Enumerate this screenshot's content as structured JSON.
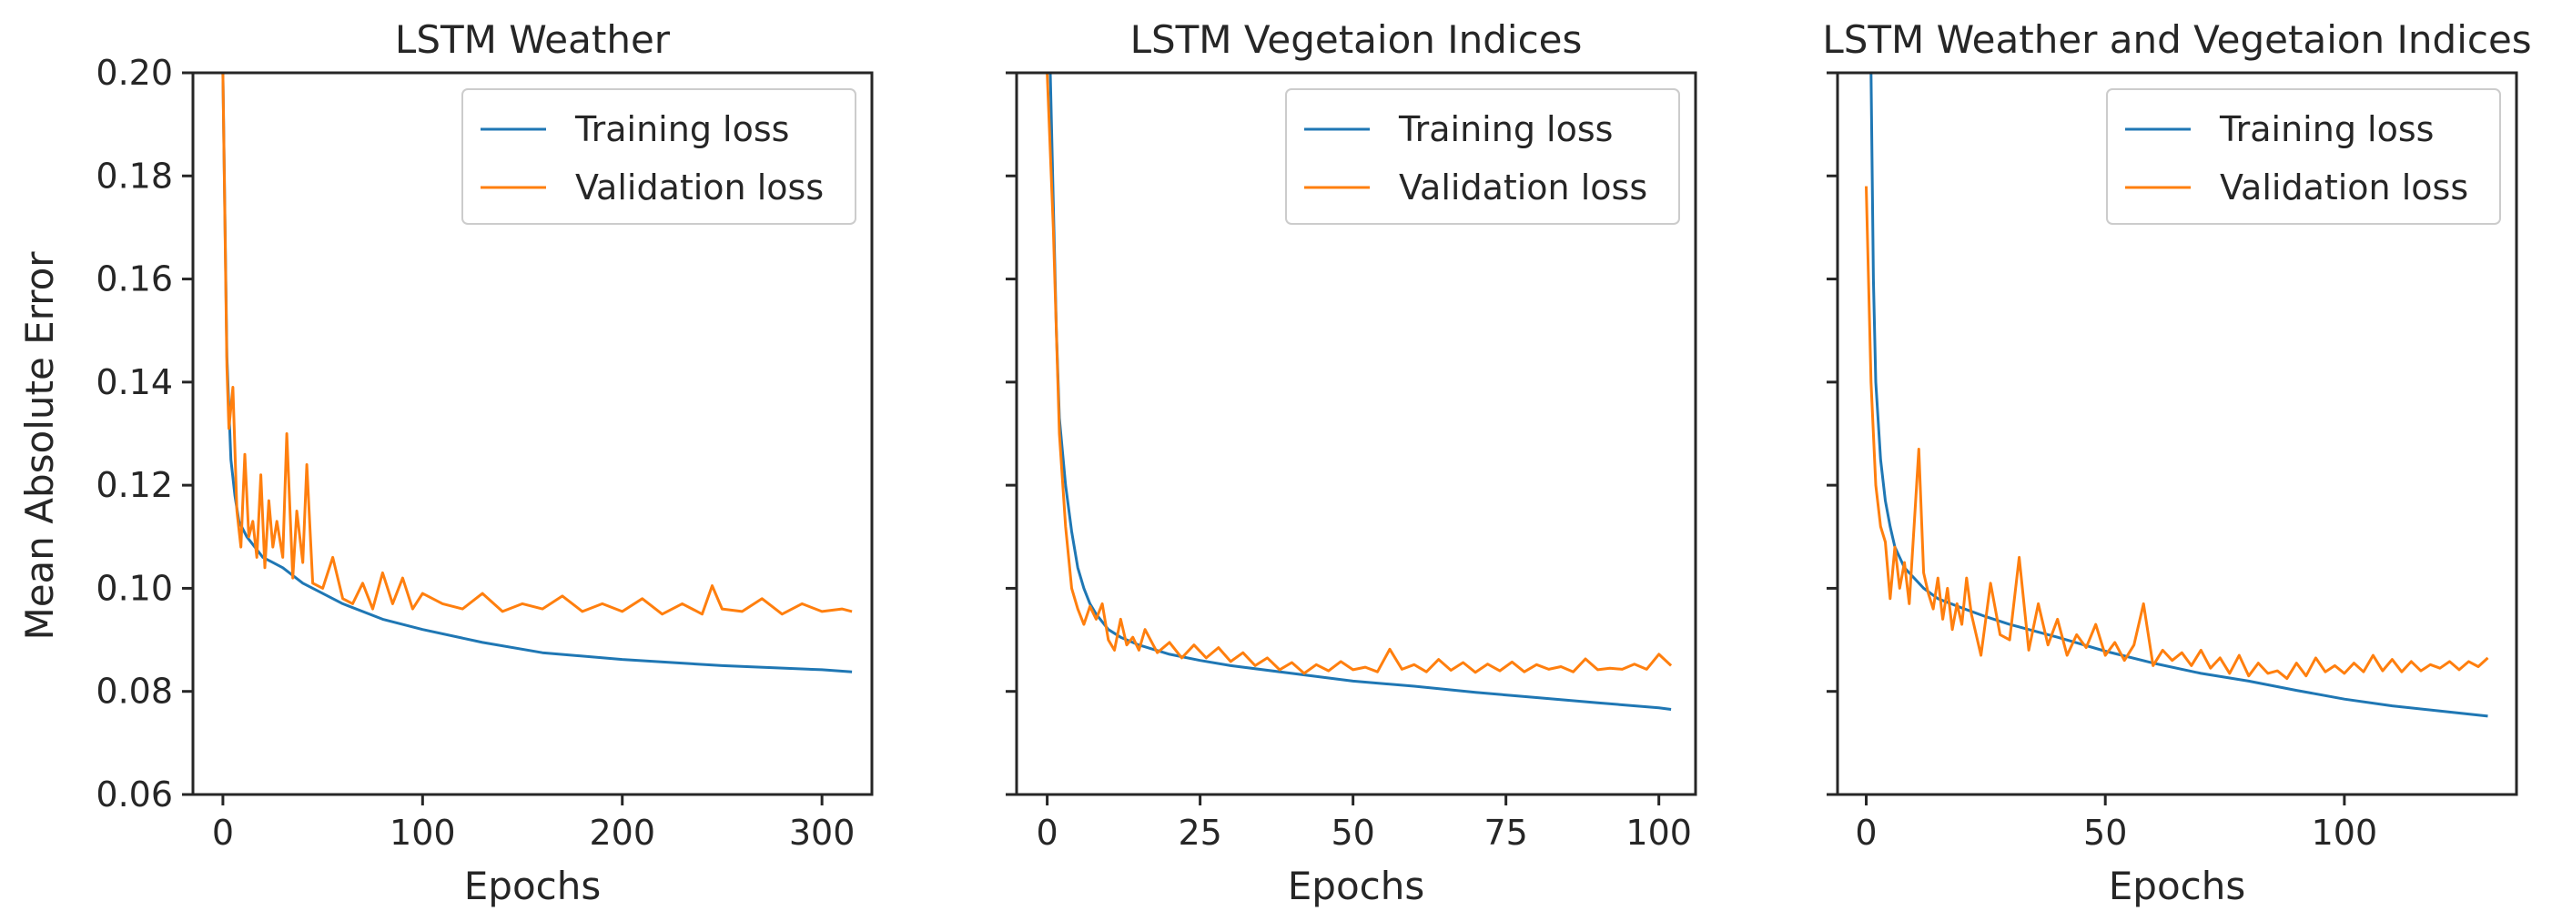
{
  "colors": {
    "training": "#1f77b4",
    "validation": "#ff7f0e"
  },
  "shared_ylabel": "Mean Absolute Error",
  "chart_data": [
    {
      "type": "line",
      "title": "LSTM Weather",
      "xlabel": "Epochs",
      "ylabel": "Mean Absolute Error",
      "xlim": [
        -15,
        325
      ],
      "ylim": [
        0.06,
        0.2
      ],
      "xticks": [
        0,
        100,
        200,
        300
      ],
      "yticks": [
        0.06,
        0.08,
        0.1,
        0.12,
        0.14,
        0.16,
        0.18,
        0.2
      ],
      "ytick_labels": [
        "0.06",
        "0.08",
        "0.10",
        "0.12",
        "0.14",
        "0.16",
        "0.18",
        "0.20"
      ],
      "legend": "top-right",
      "series": [
        {
          "name": "Training loss",
          "x": [
            0,
            2,
            4,
            6,
            8,
            12,
            16,
            20,
            25,
            30,
            40,
            50,
            60,
            80,
            100,
            130,
            160,
            200,
            250,
            300,
            315
          ],
          "values": [
            0.2,
            0.145,
            0.125,
            0.118,
            0.113,
            0.11,
            0.108,
            0.106,
            0.105,
            0.104,
            0.101,
            0.099,
            0.097,
            0.094,
            0.092,
            0.0895,
            0.0875,
            0.0862,
            0.085,
            0.0842,
            0.0838
          ]
        },
        {
          "name": "Validation loss",
          "x": [
            0,
            2,
            3,
            5,
            7,
            9,
            11,
            13,
            15,
            17,
            19,
            21,
            23,
            25,
            27,
            30,
            32,
            35,
            37,
            40,
            42,
            45,
            50,
            55,
            60,
            65,
            70,
            75,
            80,
            85,
            90,
            95,
            100,
            110,
            120,
            130,
            140,
            150,
            160,
            170,
            180,
            190,
            200,
            210,
            220,
            230,
            240,
            245,
            250,
            260,
            270,
            280,
            290,
            300,
            310,
            315
          ],
          "values": [
            0.2,
            0.143,
            0.131,
            0.139,
            0.115,
            0.108,
            0.126,
            0.11,
            0.113,
            0.106,
            0.122,
            0.104,
            0.117,
            0.108,
            0.113,
            0.106,
            0.13,
            0.102,
            0.115,
            0.105,
            0.124,
            0.101,
            0.1,
            0.106,
            0.098,
            0.097,
            0.101,
            0.096,
            0.103,
            0.097,
            0.102,
            0.096,
            0.099,
            0.097,
            0.096,
            0.099,
            0.0955,
            0.097,
            0.096,
            0.0985,
            0.0955,
            0.097,
            0.0955,
            0.098,
            0.095,
            0.097,
            0.095,
            0.1005,
            0.096,
            0.0955,
            0.098,
            0.095,
            0.097,
            0.0955,
            0.096,
            0.0955
          ]
        }
      ]
    },
    {
      "type": "line",
      "title": "LSTM Vegetaion Indices",
      "xlabel": "Epochs",
      "ylabel": "",
      "xlim": [
        -5,
        106
      ],
      "ylim": [
        0.06,
        0.2
      ],
      "xticks": [
        0,
        25,
        50,
        75,
        100
      ],
      "yticks": [
        0.06,
        0.08,
        0.1,
        0.12,
        0.14,
        0.16,
        0.18,
        0.2
      ],
      "ytick_labels": [],
      "legend": "top-right",
      "series": [
        {
          "name": "Training loss",
          "x": [
            0.5,
            1,
            1.5,
            2,
            3,
            4,
            5,
            6,
            7,
            8,
            10,
            12,
            15,
            20,
            25,
            30,
            40,
            50,
            60,
            70,
            80,
            90,
            100,
            102
          ],
          "values": [
            0.2,
            0.175,
            0.15,
            0.133,
            0.12,
            0.111,
            0.104,
            0.1,
            0.097,
            0.095,
            0.092,
            0.0905,
            0.089,
            0.0872,
            0.086,
            0.085,
            0.0835,
            0.082,
            0.081,
            0.0798,
            0.0788,
            0.0778,
            0.0768,
            0.0765
          ]
        },
        {
          "name": "Validation loss",
          "x": [
            0,
            1,
            2,
            3,
            4,
            5,
            6,
            7,
            8,
            9,
            10,
            11,
            12,
            13,
            14,
            15,
            16,
            18,
            20,
            22,
            24,
            26,
            28,
            30,
            32,
            34,
            36,
            38,
            40,
            42,
            44,
            46,
            48,
            50,
            52,
            54,
            56,
            58,
            60,
            62,
            64,
            66,
            68,
            70,
            72,
            74,
            76,
            78,
            80,
            82,
            84,
            86,
            88,
            90,
            92,
            94,
            96,
            98,
            100,
            102
          ],
          "values": [
            0.2,
            0.17,
            0.13,
            0.112,
            0.1,
            0.096,
            0.093,
            0.0965,
            0.094,
            0.097,
            0.09,
            0.088,
            0.094,
            0.089,
            0.0905,
            0.088,
            0.092,
            0.0875,
            0.0895,
            0.0865,
            0.089,
            0.0865,
            0.0885,
            0.0858,
            0.0875,
            0.085,
            0.0865,
            0.0842,
            0.0856,
            0.0835,
            0.0852,
            0.084,
            0.0858,
            0.0842,
            0.0847,
            0.0838,
            0.0882,
            0.0843,
            0.0852,
            0.0838,
            0.0862,
            0.0841,
            0.0856,
            0.0837,
            0.0853,
            0.084,
            0.0857,
            0.0838,
            0.0852,
            0.0843,
            0.0848,
            0.0838,
            0.0863,
            0.0842,
            0.0845,
            0.0843,
            0.0853,
            0.0843,
            0.0872,
            0.085
          ]
        }
      ]
    },
    {
      "type": "line",
      "title": "LSTM Weather and Vegetaion Indices",
      "xlabel": "Epochs",
      "ylabel": "",
      "xlim": [
        -6,
        136
      ],
      "ylim": [
        0.06,
        0.2
      ],
      "xticks": [
        0,
        50,
        100
      ],
      "yticks": [
        0.06,
        0.08,
        0.1,
        0.12,
        0.14,
        0.16,
        0.18,
        0.2
      ],
      "ytick_labels": [],
      "legend": "top-right",
      "series": [
        {
          "name": "Training loss",
          "x": [
            1,
            1.5,
            2,
            3,
            4,
            5,
            6,
            8,
            10,
            12,
            15,
            20,
            25,
            30,
            40,
            50,
            60,
            70,
            80,
            90,
            100,
            110,
            120,
            130
          ],
          "values": [
            0.2,
            0.16,
            0.14,
            0.125,
            0.117,
            0.112,
            0.108,
            0.104,
            0.102,
            0.1,
            0.098,
            0.0962,
            0.0945,
            0.093,
            0.0905,
            0.0878,
            0.0855,
            0.0835,
            0.082,
            0.0802,
            0.0785,
            0.0772,
            0.0762,
            0.0752
          ]
        },
        {
          "name": "Validation loss",
          "x": [
            0,
            1,
            2,
            3,
            4,
            5,
            6,
            7,
            8,
            9,
            10,
            11,
            12,
            13,
            14,
            15,
            16,
            17,
            18,
            19,
            20,
            21,
            22,
            24,
            26,
            28,
            30,
            32,
            34,
            36,
            38,
            40,
            42,
            44,
            46,
            48,
            50,
            52,
            54,
            56,
            58,
            60,
            62,
            64,
            66,
            68,
            70,
            72,
            74,
            76,
            78,
            80,
            82,
            84,
            86,
            88,
            90,
            92,
            94,
            96,
            98,
            100,
            102,
            104,
            106,
            108,
            110,
            112,
            114,
            116,
            118,
            120,
            122,
            124,
            126,
            128,
            130
          ],
          "values": [
            0.178,
            0.14,
            0.12,
            0.112,
            0.109,
            0.098,
            0.108,
            0.1,
            0.105,
            0.097,
            0.112,
            0.127,
            0.103,
            0.099,
            0.096,
            0.102,
            0.094,
            0.1,
            0.092,
            0.097,
            0.093,
            0.102,
            0.095,
            0.087,
            0.101,
            0.091,
            0.09,
            0.106,
            0.088,
            0.097,
            0.089,
            0.094,
            0.087,
            0.091,
            0.0885,
            0.093,
            0.087,
            0.0895,
            0.086,
            0.089,
            0.097,
            0.085,
            0.088,
            0.086,
            0.0875,
            0.085,
            0.088,
            0.0845,
            0.0865,
            0.0835,
            0.087,
            0.083,
            0.0855,
            0.0835,
            0.084,
            0.0825,
            0.0855,
            0.083,
            0.0865,
            0.0838,
            0.085,
            0.0835,
            0.0855,
            0.0838,
            0.087,
            0.084,
            0.0862,
            0.0838,
            0.0858,
            0.084,
            0.0852,
            0.0845,
            0.0858,
            0.0842,
            0.0858,
            0.0848,
            0.0865
          ]
        }
      ]
    }
  ]
}
